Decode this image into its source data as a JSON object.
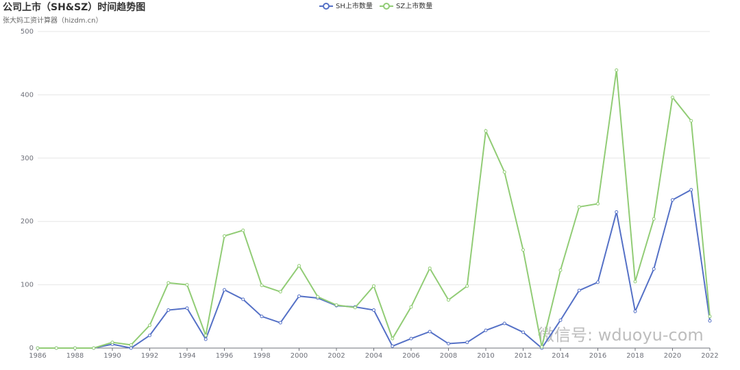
{
  "chart_data": {
    "type": "line",
    "title": "公司上市（SH&SZ）时间趋势图",
    "subtitle": "张大妈工资计算器（hizdm.cn）",
    "watermark": "微信号: wduoyu-com",
    "x": [
      1986,
      1987,
      1988,
      1989,
      1990,
      1991,
      1992,
      1993,
      1994,
      1995,
      1996,
      1997,
      1998,
      1999,
      2000,
      2001,
      2002,
      2003,
      2004,
      2005,
      2006,
      2007,
      2008,
      2009,
      2010,
      2011,
      2012,
      2013,
      2014,
      2015,
      2016,
      2017,
      2018,
      2019,
      2020,
      2021,
      2022
    ],
    "xlim": [
      1986,
      2022
    ],
    "xticks": [
      1986,
      1988,
      1990,
      1992,
      1994,
      1996,
      1998,
      2000,
      2002,
      2004,
      2006,
      2008,
      2010,
      2012,
      2014,
      2016,
      2018,
      2020,
      2022
    ],
    "ylim": [
      0,
      500
    ],
    "yticks": [
      0,
      100,
      200,
      300,
      400,
      500
    ],
    "grid": true,
    "legend": "top",
    "series": [
      {
        "name": "SH上市数量",
        "color": "#5470c6",
        "values": [
          0,
          0,
          0,
          0,
          6,
          0,
          20,
          60,
          63,
          14,
          92,
          77,
          50,
          40,
          82,
          79,
          67,
          65,
          60,
          3,
          15,
          26,
          7,
          9,
          28,
          39,
          25,
          0,
          44,
          91,
          104,
          215,
          58,
          125,
          234,
          250,
          43
        ]
      },
      {
        "name": "SZ上市数量",
        "color": "#91cc75",
        "values": [
          0,
          0,
          0,
          0,
          9,
          5,
          36,
          103,
          100,
          20,
          177,
          186,
          99,
          89,
          130,
          81,
          68,
          64,
          98,
          15,
          65,
          126,
          76,
          98,
          343,
          278,
          155,
          2,
          123,
          223,
          228,
          439,
          105,
          204,
          396,
          359,
          50
        ]
      }
    ]
  }
}
